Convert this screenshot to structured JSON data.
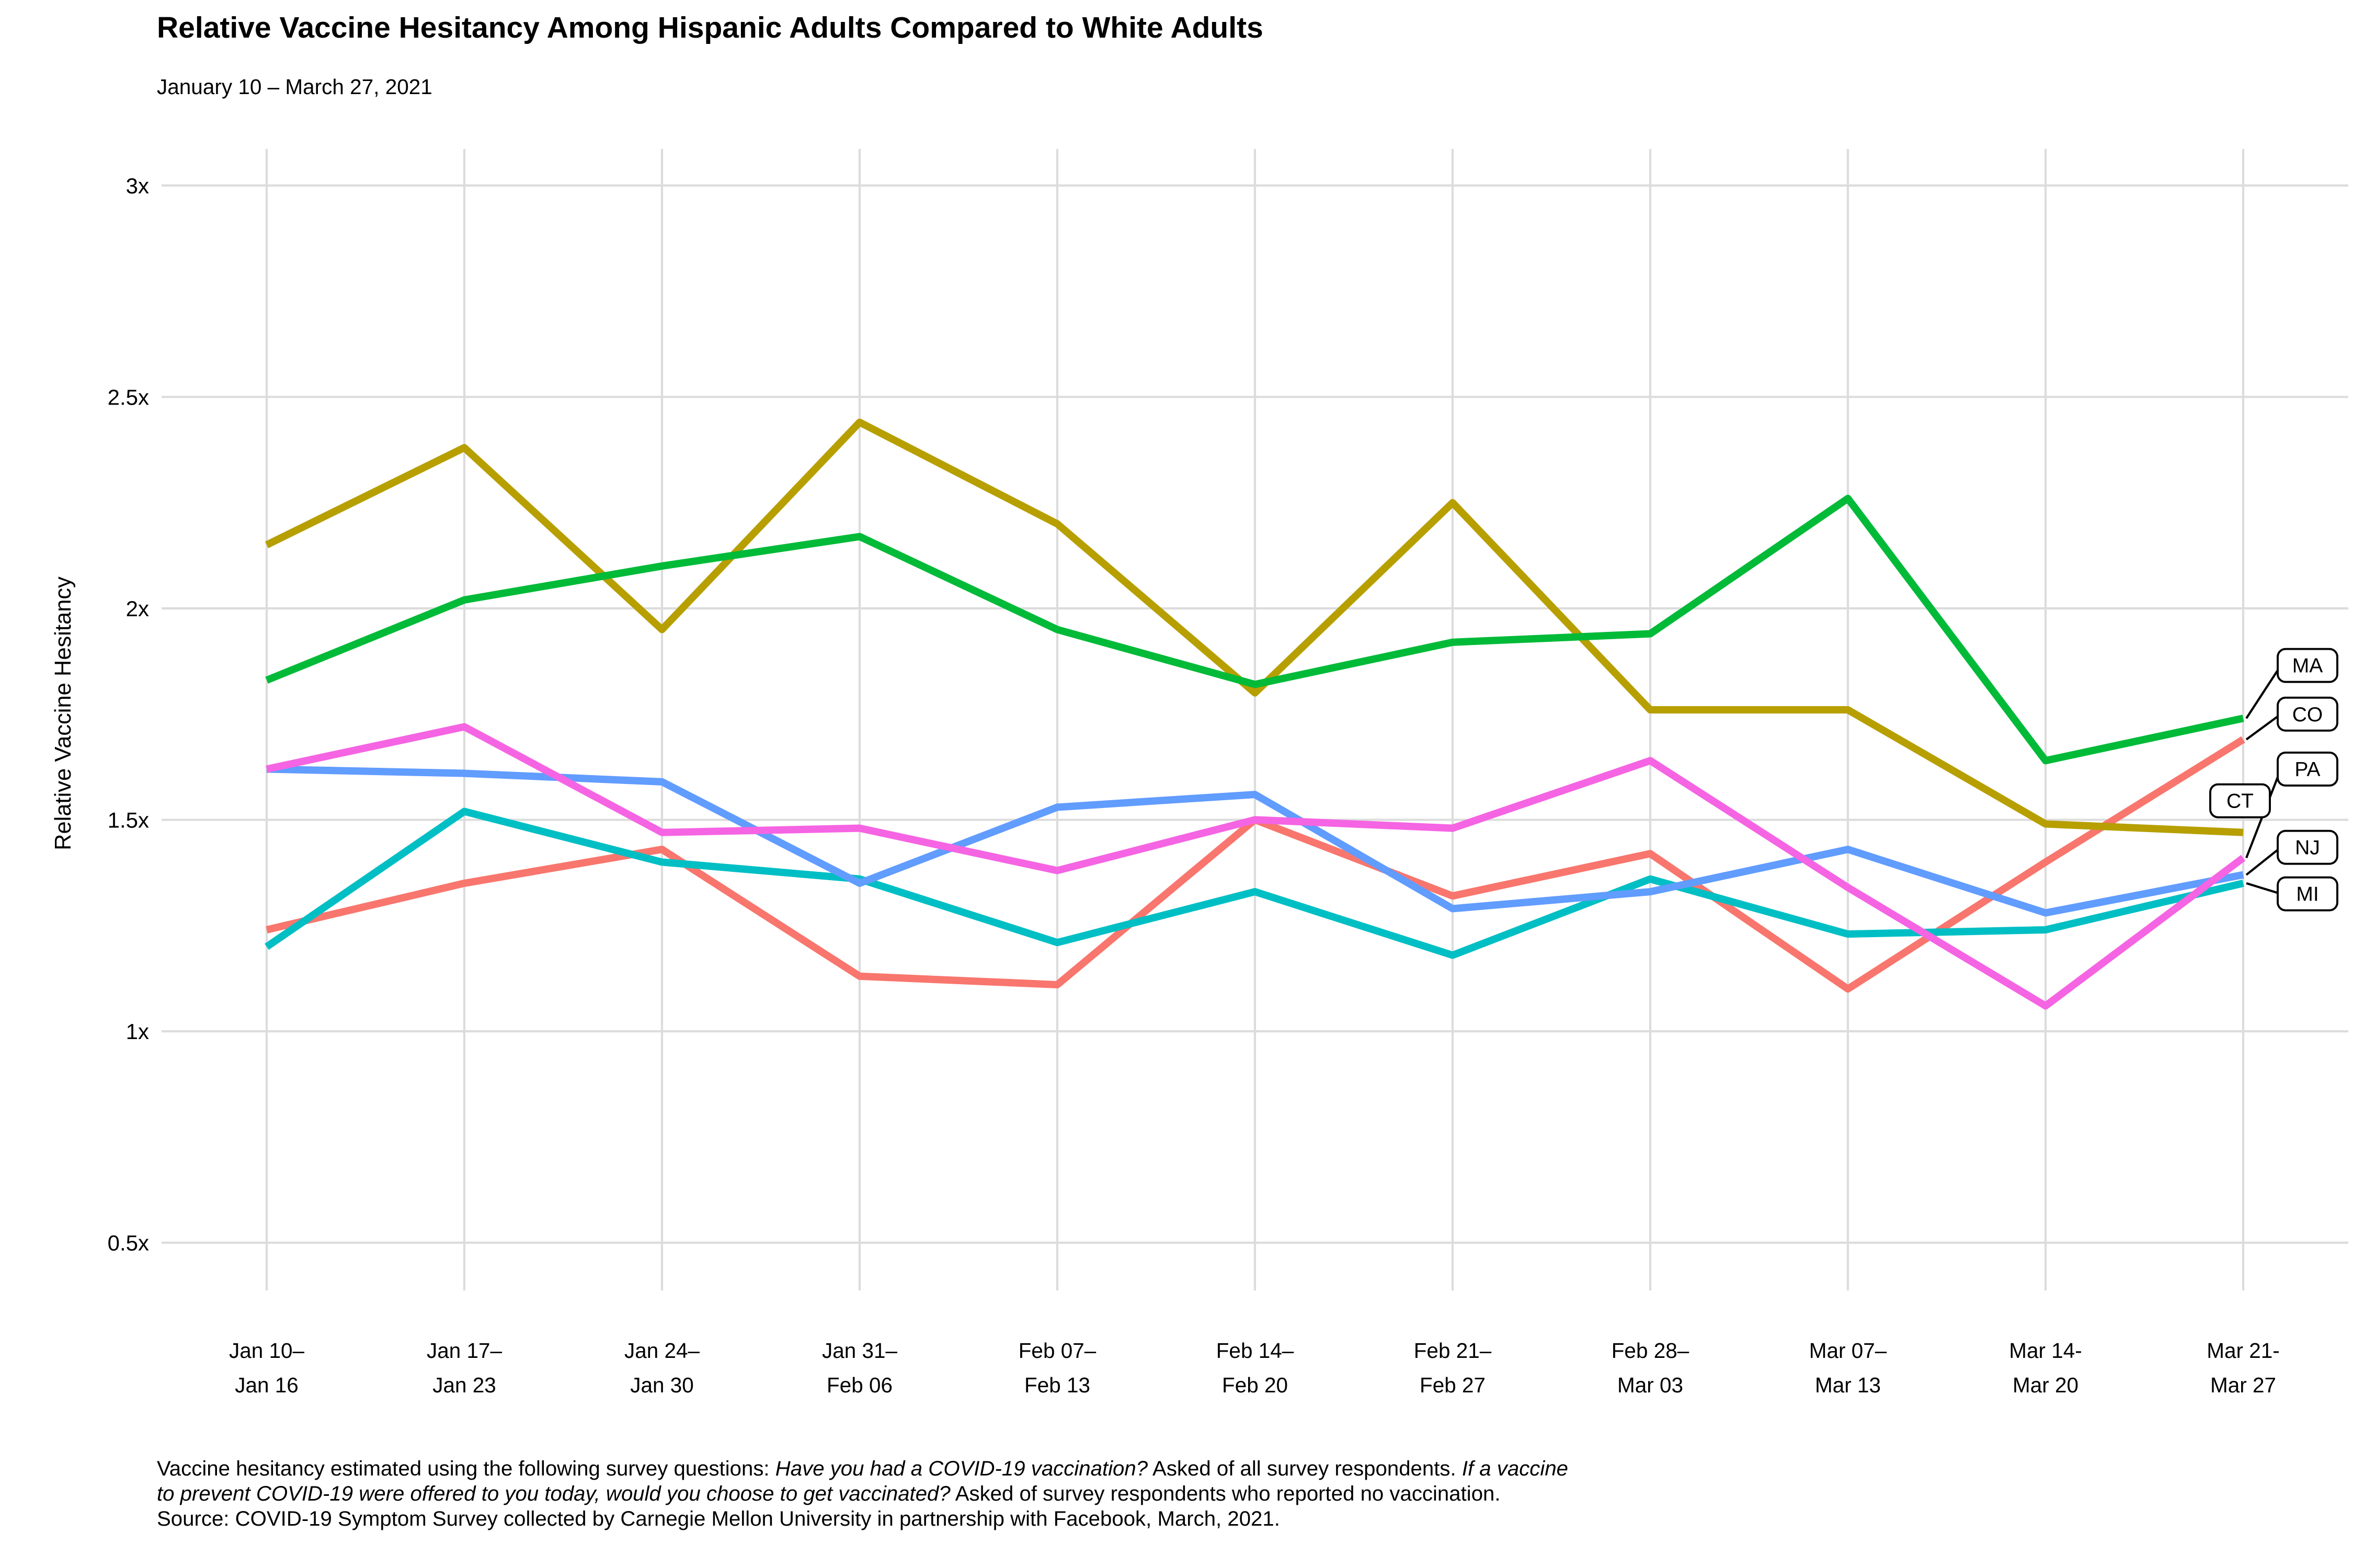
{
  "header": {
    "title": "Relative Vaccine Hesitancy Among Hispanic Adults Compared to White Adults",
    "subtitle": "January 10 – March 27, 2021"
  },
  "footnote_lines": [
    [
      {
        "text": "Vaccine hesitancy estimated using the following survey questions: ",
        "italic": false
      },
      {
        "text": "Have you had a COVID-19 vaccination?",
        "italic": true
      },
      {
        "text": " Asked of all survey respondents. ",
        "italic": false
      },
      {
        "text": "If a vaccine",
        "italic": true
      }
    ],
    [
      {
        "text": "to prevent COVID-19 were offered to you today, would you choose to get vaccinated?",
        "italic": true
      },
      {
        "text": " Asked of survey respondents who reported no vaccination.",
        "italic": false
      }
    ],
    [
      {
        "text": "Source: COVID-19 Symptom Survey collected by Carnegie Mellon University in partnership with Facebook, March, 2021.",
        "italic": false
      }
    ]
  ],
  "chart_data": {
    "type": "line",
    "title": "Relative Vaccine Hesitancy Among Hispanic Adults Compared to White Adults",
    "subtitle": "January 10 – March 27, 2021",
    "xlabel": "",
    "ylabel": "Relative Vaccine Hesitancy",
    "ylim": [
      0.5,
      3
    ],
    "grid": true,
    "legend": "state labels at right edge with leader lines",
    "y_ticks": [
      {
        "value": 3,
        "label": "3x"
      },
      {
        "value": 2.5,
        "label": "2.5x"
      },
      {
        "value": 2,
        "label": "2x"
      },
      {
        "value": 1.5,
        "label": "1.5x"
      },
      {
        "value": 1,
        "label": "1x"
      },
      {
        "value": 0.5,
        "label": "0.5x"
      }
    ],
    "categories": [
      {
        "line1": "Jan 10–",
        "line2": "Jan 16"
      },
      {
        "line1": "Jan 17–",
        "line2": "Jan 23"
      },
      {
        "line1": "Jan 24–",
        "line2": "Jan 30"
      },
      {
        "line1": "Jan 31–",
        "line2": "Feb 06"
      },
      {
        "line1": "Feb 07–",
        "line2": "Feb 13"
      },
      {
        "line1": "Feb 14–",
        "line2": "Feb 20"
      },
      {
        "line1": "Feb 21–",
        "line2": "Feb 27"
      },
      {
        "line1": "Feb 28–",
        "line2": "Mar 03"
      },
      {
        "line1": "Mar 07–",
        "line2": "Mar 13"
      },
      {
        "line1": "Mar 14-",
        "line2": "Mar 20"
      },
      {
        "line1": "Mar 21-",
        "line2": "Mar 27"
      }
    ],
    "series": [
      {
        "name": "CO",
        "color": "#F8766D",
        "label_v": 1.75,
        "values": [
          1.24,
          1.35,
          1.43,
          1.13,
          1.11,
          1.5,
          1.32,
          1.42,
          1.1,
          1.4,
          1.69
        ]
      },
      {
        "name": "CT",
        "color": "#B79F00",
        "label_v": 1.545,
        "label_inside": true,
        "values": [
          2.15,
          2.38,
          1.95,
          2.44,
          2.2,
          1.8,
          2.25,
          1.76,
          1.76,
          1.49,
          1.47
        ]
      },
      {
        "name": "MA",
        "color": "#00BA38",
        "label_v": 1.865,
        "values": [
          1.83,
          2.02,
          2.1,
          2.17,
          1.95,
          1.82,
          1.92,
          1.94,
          2.26,
          1.64,
          1.74
        ]
      },
      {
        "name": "MI",
        "color": "#00BFC4",
        "label_v": 1.325,
        "values": [
          1.2,
          1.52,
          1.4,
          1.36,
          1.21,
          1.33,
          1.18,
          1.36,
          1.23,
          1.24,
          1.35
        ]
      },
      {
        "name": "NJ",
        "color": "#619CFF",
        "label_v": 1.435,
        "values": [
          1.62,
          1.61,
          1.59,
          1.35,
          1.53,
          1.56,
          1.29,
          1.33,
          1.43,
          1.28,
          1.37
        ]
      },
      {
        "name": "PA",
        "color": "#F564E3",
        "label_v": 1.62,
        "values": [
          1.62,
          1.72,
          1.47,
          1.48,
          1.38,
          1.5,
          1.48,
          1.64,
          1.34,
          1.06,
          1.41
        ]
      }
    ]
  },
  "colors": {
    "gridline": "#dcdcdc",
    "text": "#000000",
    "label_box_fill": "#ffffff",
    "label_box_border": "#000000"
  }
}
